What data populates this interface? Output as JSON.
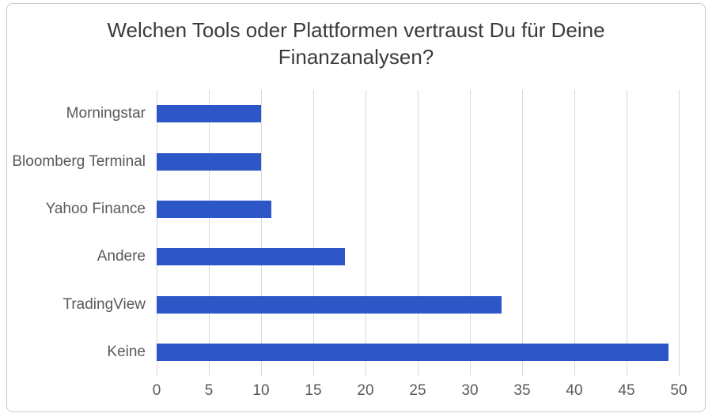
{
  "chart_data": {
    "type": "bar",
    "orientation": "horizontal",
    "title": "Welchen Tools oder Plattformen vertraust Du für Deine Finanzanalysen?",
    "categories": [
      "Morningstar",
      "Bloomberg Terminal",
      "Yahoo Finance",
      "Andere",
      "TradingView",
      "Keine"
    ],
    "values": [
      10,
      10,
      11,
      18,
      33,
      49
    ],
    "xlabel": "",
    "ylabel": "",
    "xlim": [
      0,
      50
    ],
    "x_ticks": [
      0,
      5,
      10,
      15,
      20,
      25,
      30,
      35,
      40,
      45,
      50
    ],
    "grid": true,
    "legend": false,
    "colors": {
      "bar": "#2d56c7",
      "gridline": "#d9d9d9",
      "title_text": "#3b3b3b",
      "axis_text": "#595959",
      "card_border": "#c9c9c9",
      "background": "#ffffff"
    }
  }
}
